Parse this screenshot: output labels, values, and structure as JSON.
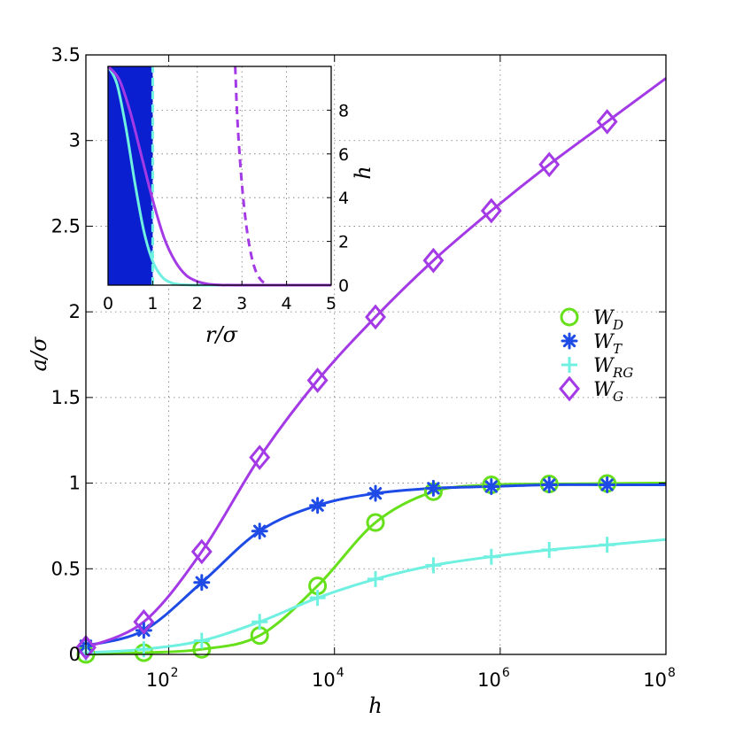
{
  "chart_data": [
    {
      "type": "line",
      "xlabel": "h",
      "ylabel": "a/σ",
      "xscale": "log",
      "xlim": [
        10,
        100000000
      ],
      "ylim": [
        0,
        3.5
      ],
      "xticks": [
        {
          "value": 100,
          "base": "10",
          "exp": "2"
        },
        {
          "value": 10000,
          "base": "10",
          "exp": "4"
        },
        {
          "value": 1000000,
          "base": "10",
          "exp": "6"
        },
        {
          "value": 100000000,
          "base": "10",
          "exp": "8"
        }
      ],
      "yticks": [
        {
          "value": 0,
          "label": "0"
        },
        {
          "value": 0.5,
          "label": "0.5"
        },
        {
          "value": 1,
          "label": "1"
        },
        {
          "value": 1.5,
          "label": "1.5"
        },
        {
          "value": 2,
          "label": "2"
        },
        {
          "value": 2.5,
          "label": "2.5"
        },
        {
          "value": 3,
          "label": "3"
        },
        {
          "value": 3.5,
          "label": "3.5"
        }
      ],
      "grid": true,
      "legend_position": "right",
      "series": [
        {
          "name": "W",
          "sub": "D",
          "color": "#66e01a",
          "marker": "circle",
          "x": [
            10,
            50,
            250,
            1250,
            6250,
            31250,
            156250,
            781250,
            3906250,
            19531250
          ],
          "y": [
            0.0,
            0.01,
            0.03,
            0.11,
            0.4,
            0.77,
            0.95,
            0.99,
            0.995,
            0.998
          ]
        },
        {
          "name": "W",
          "sub": "T",
          "color": "#1e4be6",
          "marker": "asterisk",
          "x": [
            10,
            50,
            250,
            1250,
            6250,
            31250,
            156250,
            781250,
            3906250,
            19531250
          ],
          "y": [
            0.05,
            0.14,
            0.42,
            0.72,
            0.87,
            0.94,
            0.97,
            0.98,
            0.99,
            0.99
          ]
        },
        {
          "name": "W",
          "sub": "RG",
          "color": "#6ff0e0",
          "marker": "plus",
          "x": [
            10,
            50,
            250,
            1250,
            6250,
            31250,
            156250,
            781250,
            3906250,
            19531250
          ],
          "y": [
            0.01,
            0.03,
            0.08,
            0.19,
            0.33,
            0.44,
            0.52,
            0.57,
            0.61,
            0.64
          ]
        },
        {
          "name": "W",
          "sub": "G",
          "color": "#a43ae6",
          "marker": "diamond",
          "x": [
            10,
            50,
            250,
            1250,
            6250,
            31250,
            156250,
            781250,
            3906250,
            19531250
          ],
          "y": [
            0.04,
            0.19,
            0.6,
            1.15,
            1.6,
            1.97,
            2.3,
            2.59,
            2.86,
            3.11
          ]
        }
      ]
    },
    {
      "type": "line",
      "position": "inset-top-left",
      "xlabel": "r/σ",
      "ylabel": "h",
      "ylabel_side": "right",
      "xlim": [
        0,
        5
      ],
      "ylim": [
        0,
        10
      ],
      "xticks": [
        0,
        1,
        2,
        3,
        4,
        5
      ],
      "yticks": [
        0,
        2,
        4,
        6,
        8
      ],
      "grid": true,
      "series": [
        {
          "color": "#0a1fcf",
          "style": "filled-step",
          "x_edge": 1.0
        },
        {
          "color": "#6ff0e0",
          "style": "solid",
          "x": [
            0,
            0.2,
            0.4,
            0.6,
            0.8,
            1.0,
            1.2,
            1.4,
            1.6,
            1.8,
            2.0,
            2.5
          ],
          "y": [
            10,
            9.2,
            7.2,
            4.7,
            2.5,
            1.1,
            0.4,
            0.12,
            0.03,
            0.01,
            0,
            0
          ]
        },
        {
          "color": "#6ff0e0",
          "style": "dashed",
          "x": [
            1.0,
            1.0
          ],
          "y": [
            0,
            10
          ]
        },
        {
          "color": "#a43ae6",
          "style": "solid",
          "x": [
            0,
            0.25,
            0.5,
            0.75,
            1.0,
            1.25,
            1.5,
            1.75,
            2.0,
            2.25,
            2.5,
            3.0,
            5.0
          ],
          "y": [
            10,
            9.4,
            7.9,
            5.9,
            3.9,
            2.2,
            1.1,
            0.45,
            0.17,
            0.05,
            0.01,
            0,
            0
          ]
        },
        {
          "color": "#a43ae6",
          "style": "dashed",
          "x": [
            2.85,
            2.9,
            3.0,
            3.1,
            3.2,
            3.3,
            3.4,
            3.5,
            3.6
          ],
          "y": [
            10,
            7.5,
            4.6,
            2.7,
            1.45,
            0.7,
            0.3,
            0.1,
            0.0
          ]
        }
      ]
    }
  ]
}
